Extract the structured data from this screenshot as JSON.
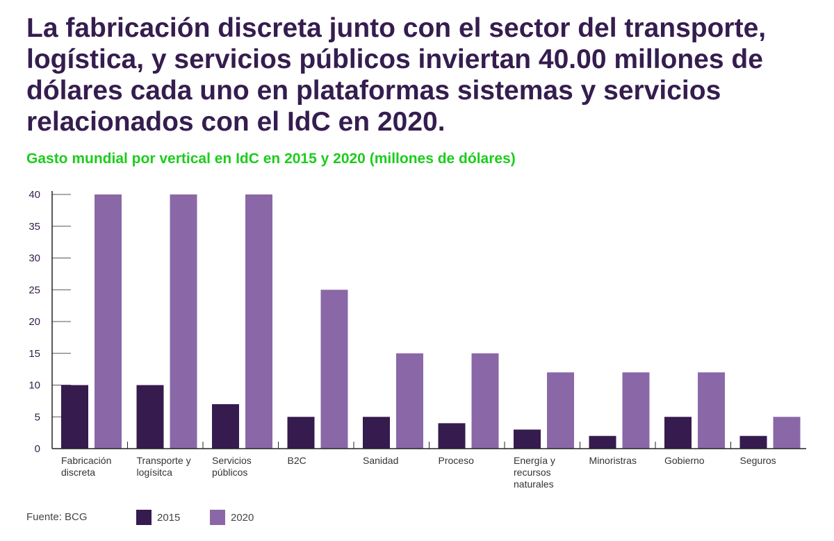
{
  "title": "La fabricación discreta junto con el sector del transporte, logística, y servicios públicos inviertan 40.00 millones de dólares cada uno en plataformas sistemas y servicios relacionados con el IdC en 2020.",
  "subtitle": "Gasto mundial por vertical en IdC en 2015 y 2020 (millones de dólares)",
  "source": "Fuente: BCG",
  "colors": {
    "title": "#351d4f",
    "subtitle": "#1ccc1c",
    "s2015": "#361b4e",
    "s2020": "#8a68a7"
  },
  "chart_data": {
    "type": "bar",
    "categories": [
      [
        "Fabricación",
        "discreta"
      ],
      [
        "Transporte y",
        "logísitca"
      ],
      [
        "Servicios",
        "públicos"
      ],
      [
        "B2C"
      ],
      [
        "Sanidad"
      ],
      [
        "Proceso"
      ],
      [
        "Energía y",
        "recursos",
        "naturales"
      ],
      [
        "Minoristras"
      ],
      [
        "Gobierno"
      ],
      [
        "Seguros"
      ]
    ],
    "series": [
      {
        "name": "2015",
        "values": [
          10,
          10,
          7,
          5,
          5,
          4,
          3,
          2,
          5,
          2
        ]
      },
      {
        "name": "2020",
        "values": [
          40,
          40,
          40,
          25,
          15,
          15,
          12,
          12,
          12,
          5
        ]
      }
    ],
    "yticks": [
      0,
      5,
      10,
      15,
      20,
      25,
      30,
      35,
      40
    ],
    "ylim": [
      0,
      40
    ],
    "legend": "bottom"
  }
}
